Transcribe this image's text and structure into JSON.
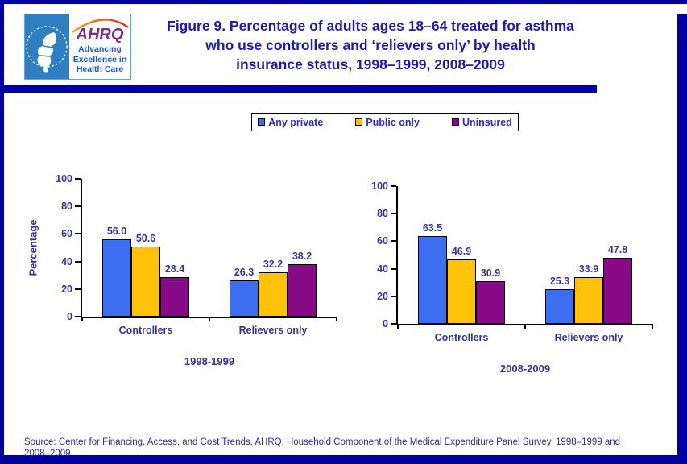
{
  "page": {
    "background": "#FFFFFF",
    "accent_navy": "#0000A0"
  },
  "header": {
    "logo": {
      "hhs_panel_color": "#2E7FC2",
      "ahrq_acronym": "AHRQ",
      "ahrq_purple": "#7B2E8E",
      "arc_color_start": "#F5A21B",
      "arc_color_end": "#D92B1C",
      "tagline_lines": [
        "Advancing",
        "Excellence in",
        "Health Care"
      ]
    },
    "title_lines": [
      "Figure 9. Percentage of adults ages 18–64 treated for asthma",
      "who use controllers and ‘relievers only’ by health",
      "insurance status, 1998–1999, 2008–2009"
    ]
  },
  "legend": {
    "items": [
      {
        "label": "Any private",
        "color": "#3D6EF0"
      },
      {
        "label": "Public only",
        "color": "#FFC20A"
      },
      {
        "label": "Uninsured",
        "color": "#870B87"
      }
    ]
  },
  "chart_data": [
    {
      "type": "bar",
      "period": "1998-1999",
      "categories": [
        "Controllers",
        "Relievers only"
      ],
      "series": [
        {
          "name": "Any private",
          "color": "#3D6EF0",
          "values": [
            56.0,
            26.3
          ]
        },
        {
          "name": "Public only",
          "color": "#FFC20A",
          "values": [
            50.6,
            32.2
          ]
        },
        {
          "name": "Uninsured",
          "color": "#870B87",
          "values": [
            28.4,
            38.2
          ]
        }
      ],
      "ylabel": "Percentage",
      "xlabel": "",
      "ylim": [
        0,
        100
      ],
      "yticks": [
        0,
        20,
        40,
        60,
        80,
        100
      ],
      "grid": false,
      "legend_position": "top"
    },
    {
      "type": "bar",
      "period": "2008-2009",
      "categories": [
        "Controllers",
        "Relievers only"
      ],
      "series": [
        {
          "name": "Any private",
          "color": "#3D6EF0",
          "values": [
            63.5,
            25.3
          ]
        },
        {
          "name": "Public only",
          "color": "#FFC20A",
          "values": [
            46.9,
            33.9
          ]
        },
        {
          "name": "Uninsured",
          "color": "#870B87",
          "values": [
            30.9,
            47.8
          ]
        }
      ],
      "ylabel": "",
      "xlabel": "",
      "ylim": [
        0,
        100
      ],
      "yticks": [
        0,
        20,
        40,
        60,
        80,
        100
      ],
      "grid": false,
      "legend_position": "top"
    }
  ],
  "source": {
    "line1": "Source: Center for Financing, Access, and Cost Trends, AHRQ,  Household Component of the Medical Expenditure Panel Survey,  1998–1999 and",
    "line2": "2008–2009"
  }
}
